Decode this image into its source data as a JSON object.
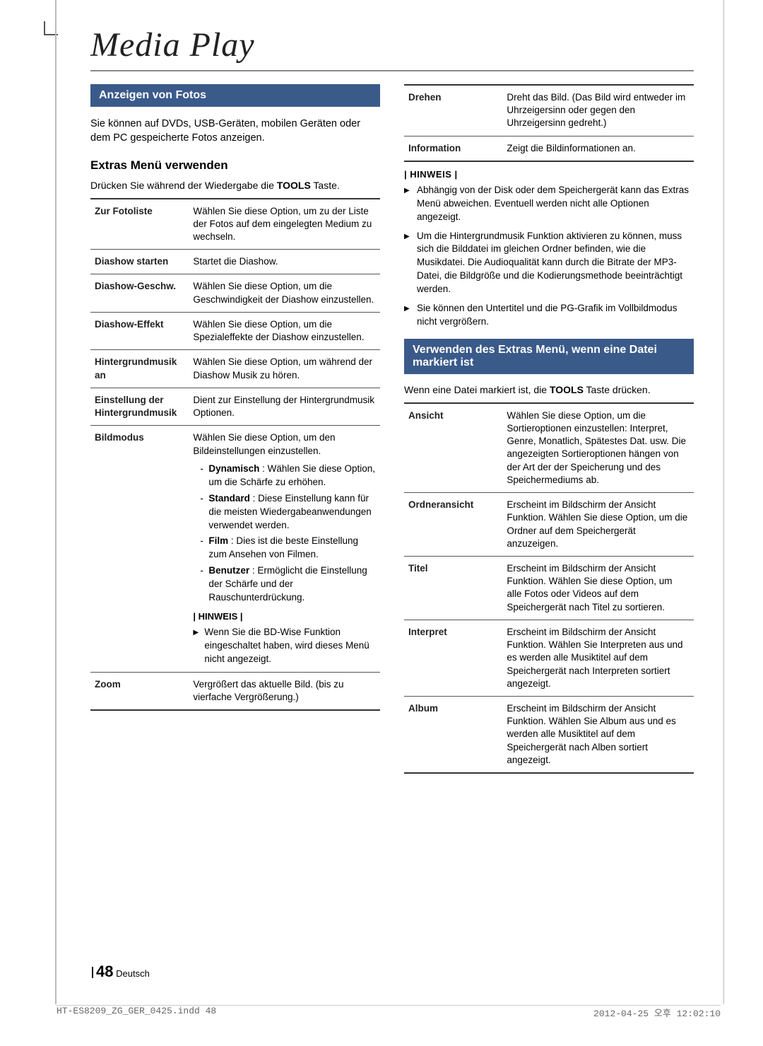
{
  "page_title": "Media Play",
  "left": {
    "section": "Anzeigen von Fotos",
    "intro": "Sie können auf DVDs, USB-Geräten, mobilen Geräten oder dem PC gespeicherte Fotos anzeigen.",
    "subhead": "Extras Menü verwenden",
    "sub_instr_pre": "Drücken Sie während der Wiedergabe die ",
    "sub_instr_bold": "TOOLS",
    "sub_instr_post": " Taste.",
    "rows": [
      {
        "k": "Zur Fotoliste",
        "v": "Wählen Sie diese Option, um zu der Liste der Fotos auf dem eingelegten Medium zu wechseln."
      },
      {
        "k": "Diashow starten",
        "v": "Startet die Diashow."
      },
      {
        "k": "Diashow-Geschw.",
        "v": "Wählen Sie diese Option, um die Geschwindigkeit der Diashow einzustellen."
      },
      {
        "k": "Diashow-Effekt",
        "v": "Wählen Sie diese Option, um die Spezialeffekte der Diashow einzustellen."
      },
      {
        "k": "Hintergrundmusik an",
        "v": "Wählen Sie diese Option, um während der Diashow Musik zu hören."
      },
      {
        "k": "Einstellung der Hintergrundmusik",
        "v": "Dient zur Einstellung der Hintergrundmusik Optionen."
      }
    ],
    "bildmodus": {
      "k": "Bildmodus",
      "lead": "Wählen Sie diese Option, um den Bildeinstellungen einzustellen.",
      "items": [
        {
          "b": "Dynamisch",
          "t": " : Wählen Sie diese Option, um die Schärfe zu erhöhen."
        },
        {
          "b": "Standard",
          "t": " : Diese Einstellung kann für die meisten Wiedergabeanwendungen verwendet werden."
        },
        {
          "b": "Film",
          "t": " : Dies ist die beste Einstellung zum Ansehen von Filmen."
        },
        {
          "b": "Benutzer",
          "t": " : Ermöglicht die Einstellung der Schärfe und der Rauschunterdrückung."
        }
      ],
      "hinweis_label": "| HINWEIS |",
      "note": "Wenn Sie die BD-Wise Funktion eingeschaltet haben, wird dieses Menü nicht angezeigt."
    },
    "zoom": {
      "k": "Zoom",
      "v": "Vergrößert das aktuelle Bild. (bis zu vierfache Vergrößerung.)"
    }
  },
  "right": {
    "top_rows": [
      {
        "k": "Drehen",
        "v": "Dreht das Bild. (Das Bild wird entweder im Uhrzeigersinn oder gegen den Uhrzeigersinn gedreht.)"
      },
      {
        "k": "Information",
        "v": "Zeigt die Bildinformationen an."
      }
    ],
    "hinweis_label": "| HINWEIS |",
    "notes": [
      "Abhängig von der Disk oder dem Speichergerät kann das Extras Menü abweichen. Eventuell werden nicht alle Optionen angezeigt.",
      "Um die Hintergrundmusik Funktion aktivieren zu können, muss sich die Bilddatei im gleichen Ordner befinden, wie die Musikdatei. Die Audioqualität kann durch die Bitrate der MP3-Datei, die Bildgröße und die Kodierungsmethode beeinträchtigt werden.",
      "Sie können den Untertitel und die PG-Grafik im Vollbildmodus nicht vergrößern."
    ],
    "section": "Verwenden des Extras Menü, wenn eine Datei markiert ist",
    "section_instr_pre": "Wenn eine Datei markiert ist, die ",
    "section_instr_bold": "TOOLS",
    "section_instr_post": " Taste drücken.",
    "rows": [
      {
        "k": "Ansicht",
        "v": "Wählen Sie diese Option, um die Sortieroptionen einzustellen: Interpret, Genre, Monatlich, Spätestes Dat. usw. Die angezeigten Sortieroptionen hängen von der Art der der Speicherung und des Speichermediums ab."
      },
      {
        "k": "Ordneransicht",
        "v": "Erscheint im Bildschirm der Ansicht Funktion. Wählen Sie diese Option, um die Ordner auf dem Speichergerät anzuzeigen."
      },
      {
        "k": "Titel",
        "v": "Erscheint im Bildschirm der Ansicht Funktion. Wählen Sie diese Option, um alle Fotos oder Videos auf dem Speichergerät nach Titel zu sortieren."
      },
      {
        "k": "Interpret",
        "v": "Erscheint im Bildschirm der Ansicht Funktion. Wählen Sie Interpreten aus und es werden alle Musiktitel auf dem Speichergerät nach Interpreten sortiert angezeigt."
      },
      {
        "k": "Album",
        "v": "Erscheint im Bildschirm der Ansicht Funktion. Wählen Sie Album aus und es werden alle Musiktitel auf dem Speichergerät nach Alben sortiert angezeigt."
      }
    ]
  },
  "footer": {
    "page": "48",
    "lang": "Deutsch"
  },
  "print": {
    "file": "HT-ES8209_ZG_GER_0425.indd   48",
    "ts": "2012-04-25   오후 12:02:10"
  }
}
